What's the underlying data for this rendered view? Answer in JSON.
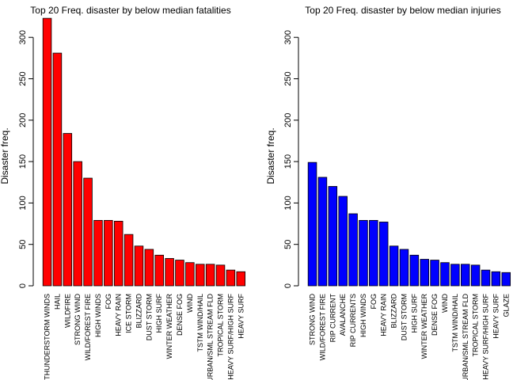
{
  "chart_data": [
    {
      "type": "bar",
      "title": "Top 20 Freq. disaster by below median fatalities",
      "xlabel": "",
      "ylabel": "Disaster freq.",
      "ylim": [
        0,
        325
      ],
      "yticks": [
        0,
        50,
        100,
        150,
        200,
        250,
        300
      ],
      "color": "#ff0000",
      "grid": false,
      "categories": [
        "THUNDERSTORM WINDS",
        "HAIL",
        "WILDFIRE",
        "STRONG WIND",
        "WILD/FOREST FIRE",
        "HIGH WINDS",
        "FOG",
        "HEAVY RAIN",
        "ICE STORM",
        "BLIZZARD",
        "DUST STORM",
        "HIGH SURF",
        "WINTER WEATHER",
        "DENSE FOG",
        "WIND",
        "TSTM WIND/HAIL",
        "URBAN/SML STREAM FLD",
        "TROPICAL STORM",
        "HEAVY SURF/HIGH SURF",
        "HEAVY SURF"
      ],
      "values": [
        323,
        281,
        184,
        150,
        130,
        79,
        79,
        78,
        62,
        48,
        44,
        37,
        33,
        31,
        28,
        26,
        26,
        25,
        19,
        17
      ]
    },
    {
      "type": "bar",
      "title": "Top 20 Freq. disaster by below median injuries",
      "xlabel": "",
      "ylabel": "Disaster freq.",
      "ylim": [
        0,
        300
      ],
      "yticks": [
        0,
        50,
        100,
        150,
        200,
        250,
        300
      ],
      "color": "#0000ff",
      "grid": false,
      "categories": [
        "STRONG WIND",
        "WILD/FOREST FIRE",
        "RIP CURRENT",
        "AVALANCHE",
        "RIP CURRENTS",
        "HIGH WINDS",
        "FOG",
        "HEAVY RAIN",
        "BLIZZARD",
        "DUST STORM",
        "HIGH SURF",
        "WINTER WEATHER",
        "DENSE FOG",
        "WIND",
        "TSTM WIND/HAIL",
        "URBAN/SML STREAM FLD",
        "TROPICAL STORM",
        "HEAVY SURF/HIGH SURF",
        "HEAVY SURF",
        "GLAZE"
      ],
      "values": [
        149,
        131,
        120,
        108,
        87,
        79,
        79,
        77,
        48,
        44,
        37,
        32,
        31,
        28,
        26,
        26,
        25,
        19,
        17,
        16
      ]
    }
  ]
}
